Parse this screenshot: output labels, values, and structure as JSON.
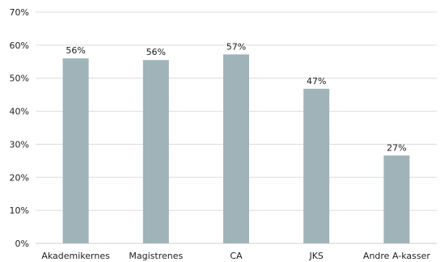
{
  "colors": {
    "bar": "#9fb3b9",
    "gridline": "#dcdcdc",
    "text": "#222222",
    "axis": "#cfcfcf"
  },
  "chart_data": {
    "type": "bar",
    "categories": [
      "Akademikernes",
      "Magistrenes",
      "CA",
      "JKS",
      "Andre A-kasser"
    ],
    "values": [
      56,
      55.5,
      57.2,
      46.8,
      26.6
    ],
    "data_labels": [
      "56%",
      "56%",
      "57%",
      "47%",
      "27%"
    ],
    "title": "",
    "xlabel": "",
    "ylabel": "",
    "ylim": [
      0,
      70
    ],
    "y_ticks": [
      0,
      10,
      20,
      30,
      40,
      50,
      60,
      70
    ],
    "y_tick_labels": [
      "0%",
      "10%",
      "20%",
      "30%",
      "40%",
      "50%",
      "60%",
      "70%"
    ],
    "grid": true,
    "legend": "none"
  }
}
